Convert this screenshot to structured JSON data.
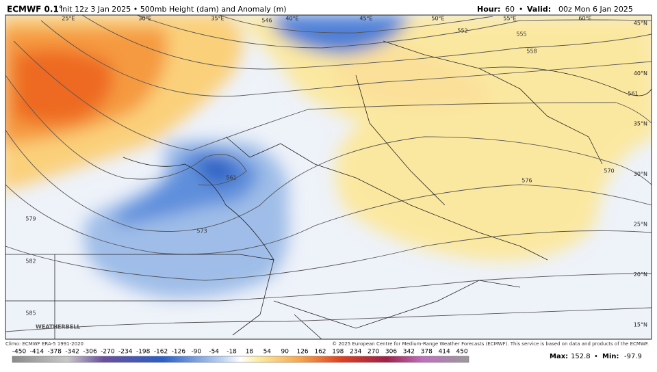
{
  "header": {
    "model": "ECMWF 0.1°",
    "description": "Init 12z 3 Jan 2025 • 500mb Height (dam) and Anomaly (m)",
    "hour_label": "Hour:",
    "hour": "60",
    "separator": "•",
    "valid_label": "Valid:",
    "valid": "00z Mon 6 Jan 2025"
  },
  "map": {
    "longitudes": [
      "25°E",
      "30°E",
      "35°E",
      "40°E",
      "45°E",
      "50°E",
      "55°E",
      "60°E"
    ],
    "latitudes": [
      "45°N",
      "40°N",
      "35°N",
      "30°N",
      "25°N",
      "20°N",
      "15°N"
    ],
    "contour_labels": [
      "546",
      "552",
      "555",
      "558",
      "561",
      "561",
      "570",
      "576",
      "573",
      "579",
      "582",
      "585"
    ],
    "logo": "WEATHERBELL"
  },
  "footer": {
    "climo": "Climo: ECMWF ERA-5 1991-2020",
    "copyright": "© 2025 European Centre for Medium-Range Weather Forecasts (ECMWF). This service is based on data and products of the ECMWF.",
    "colorbar_labels": [
      "-450",
      "-414",
      "-378",
      "-342",
      "-306",
      "-270",
      "-234",
      "-198",
      "-162",
      "-126",
      "-90",
      "-54",
      "-18",
      "18",
      "54",
      "90",
      "126",
      "162",
      "198",
      "234",
      "270",
      "306",
      "342",
      "378",
      "414",
      "450"
    ],
    "max_label": "Max:",
    "max": "152.8",
    "separator": "•",
    "min_label": "Min:",
    "min": "-97.9"
  }
}
